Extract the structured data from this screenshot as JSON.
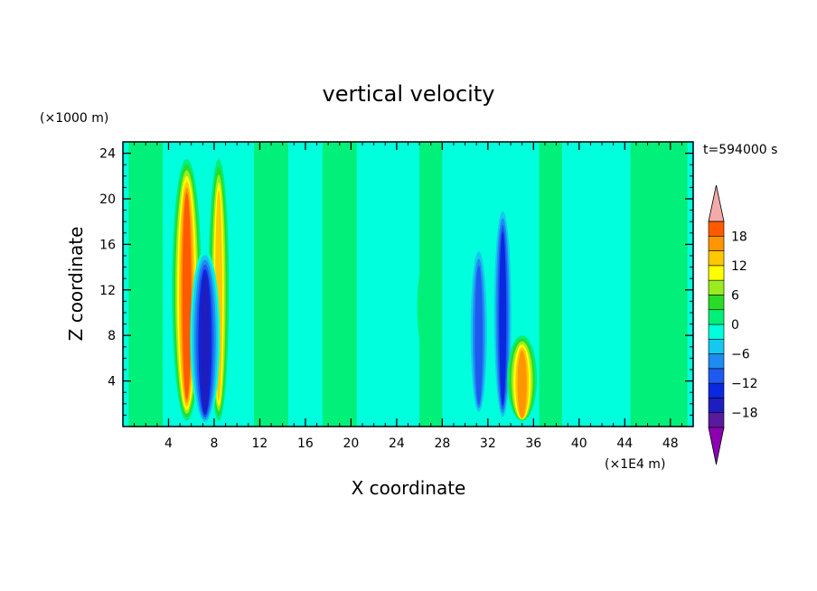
{
  "chart_data": {
    "type": "heatmap",
    "title": "vertical velocity",
    "xlabel": "X coordinate",
    "ylabel": "Z coordinate",
    "x_unit": "(×1E4 m)",
    "y_unit": "(×1000 m)",
    "time_label": "t=594000 s",
    "xlim": [
      0,
      50
    ],
    "ylim": [
      0,
      25
    ],
    "xticks": [
      4,
      8,
      12,
      16,
      20,
      24,
      28,
      32,
      36,
      40,
      44,
      48
    ],
    "yticks": [
      4,
      8,
      12,
      16,
      20,
      24
    ],
    "colorbar": {
      "levels": [
        -21,
        -18,
        -15,
        -12,
        -9,
        -6,
        -3,
        0,
        3,
        6,
        9,
        12,
        15,
        18,
        21
      ],
      "tick_values": [
        -18,
        -12,
        -6,
        0,
        6,
        12,
        18
      ],
      "tick_labels": [
        "−18",
        "−12",
        "−6",
        "0",
        "6",
        "12",
        "18"
      ],
      "colors": [
        "#5a1a9e",
        "#1e1ebe",
        "#0a28e0",
        "#1e5af0",
        "#1e8cf0",
        "#14c8f0",
        "#00ffdc",
        "#00f07a",
        "#28dc28",
        "#9aec1e",
        "#ffff00",
        "#ffc800",
        "#ff9600",
        "#ff5a00",
        "#f01e1e"
      ],
      "under_color": "#8c00b4",
      "over_color": "#f5aaaa"
    },
    "features": [
      {
        "x": 5.6,
        "z_range": [
          0.5,
          23.5
        ],
        "peak": 22,
        "desc": "strong updraft"
      },
      {
        "x": 8.4,
        "z_range": [
          0.5,
          23.5
        ],
        "peak": 14,
        "desc": "updraft"
      },
      {
        "x": 7.2,
        "z_range": [
          0.2,
          15.5
        ],
        "peak": -19,
        "desc": "strong downdraft"
      },
      {
        "x": 33.3,
        "z_range": [
          0.5,
          19.5
        ],
        "peak": -14,
        "desc": "downdraft"
      },
      {
        "x": 31.2,
        "z_range": [
          1.0,
          16.0
        ],
        "peak": -12,
        "desc": "downdraft"
      },
      {
        "x": 35.0,
        "z_range": [
          0.5,
          8.0
        ],
        "peak": 18,
        "desc": "narrow updraft"
      },
      {
        "x": 26.7,
        "z_range": [
          6.0,
          15.0
        ],
        "peak": 4,
        "desc": "weak updraft"
      },
      {
        "x": 23.5,
        "z_range": [
          2.0,
          22.0
        ],
        "peak": -3,
        "desc": "weak downdraft"
      }
    ]
  }
}
